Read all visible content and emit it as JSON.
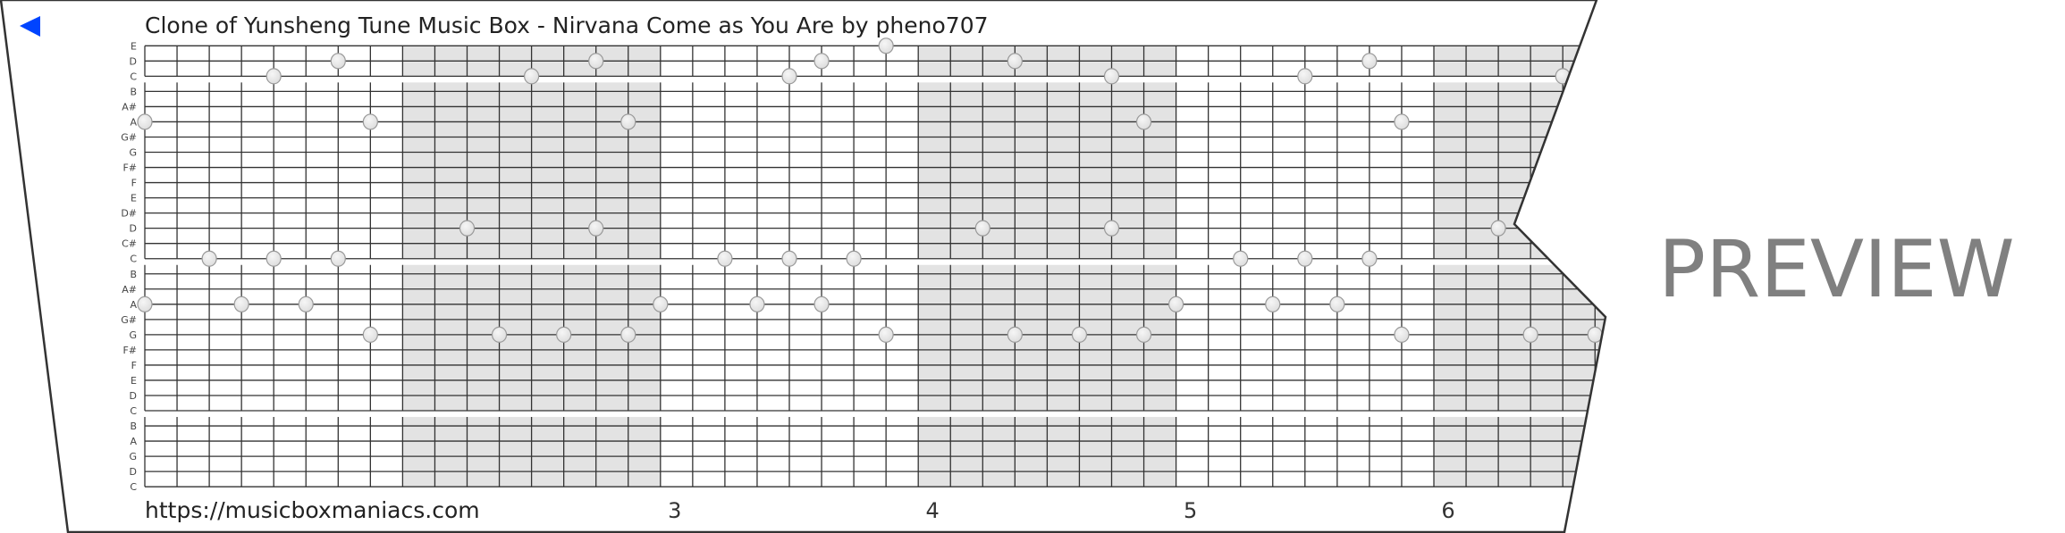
{
  "title": "Clone of Yunsheng Tune Music Box - Nirvana Come as You Are by pheno707",
  "back_icon": "triangle-left-icon",
  "url": "https://musicboxmaniacs.com",
  "preview_label": "PREVIEW",
  "measure_numbers": [
    "3",
    "4",
    "5",
    "6"
  ],
  "colors": {
    "accent": "#0044ff",
    "grid": "#333333",
    "shaded": "#e3e3e3",
    "note": "#eeeeee",
    "preview": "#808080"
  },
  "note_rows": [
    "E",
    "D",
    "C",
    "B",
    "A#",
    "A",
    "G#",
    "G",
    "F#",
    "F",
    "E",
    "D#",
    "D",
    "C#",
    "C",
    "B",
    "A#",
    "A",
    "G#",
    "G",
    "F#",
    "F",
    "E",
    "D",
    "C",
    "B",
    "A",
    "G",
    "D",
    "C"
  ],
  "notes": [
    [
      0,
      5
    ],
    [
      0,
      17
    ],
    [
      2,
      14
    ],
    [
      3,
      17
    ],
    [
      4,
      2
    ],
    [
      4,
      14
    ],
    [
      5,
      17
    ],
    [
      6,
      1
    ],
    [
      6,
      14
    ],
    [
      7,
      5
    ],
    [
      7,
      19
    ],
    [
      10,
      12
    ],
    [
      11,
      19
    ],
    [
      12,
      2
    ],
    [
      13,
      19
    ],
    [
      14,
      1
    ],
    [
      14,
      12
    ],
    [
      15,
      5
    ],
    [
      15,
      19
    ],
    [
      16,
      17
    ],
    [
      18,
      14
    ],
    [
      19,
      17
    ],
    [
      20,
      2
    ],
    [
      20,
      14
    ],
    [
      21,
      1
    ],
    [
      21,
      17
    ],
    [
      22,
      14
    ],
    [
      23,
      0
    ],
    [
      23,
      19
    ],
    [
      26,
      12
    ],
    [
      27,
      1
    ],
    [
      27,
      19
    ],
    [
      29,
      19
    ],
    [
      30,
      2
    ],
    [
      30,
      12
    ],
    [
      31,
      5
    ],
    [
      31,
      19
    ],
    [
      32,
      17
    ],
    [
      34,
      14
    ],
    [
      35,
      17
    ],
    [
      36,
      2
    ],
    [
      36,
      14
    ],
    [
      37,
      17
    ],
    [
      38,
      1
    ],
    [
      38,
      14
    ],
    [
      39,
      5
    ],
    [
      39,
      19
    ],
    [
      42,
      12
    ],
    [
      43,
      19
    ],
    [
      44,
      2
    ],
    [
      45,
      19
    ]
  ]
}
